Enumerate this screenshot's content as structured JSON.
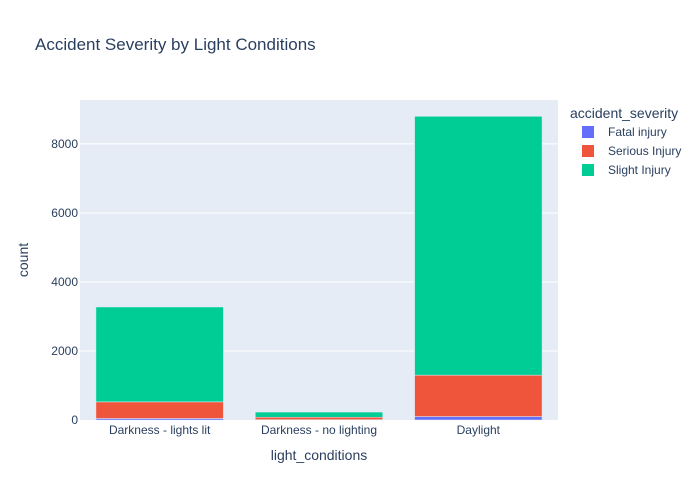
{
  "chart_data": {
    "type": "bar",
    "barmode": "stack",
    "title": "Accident Severity by Light Conditions",
    "xlabel": "light_conditions",
    "ylabel": "count",
    "categories": [
      "Darkness - lights lit",
      "Darkness - no lighting",
      "Daylight"
    ],
    "ylim": [
      0,
      9273
    ],
    "yticks": [
      0,
      2000,
      4000,
      6000,
      8000
    ],
    "ytick_labels": [
      "0",
      "2000",
      "4000",
      "6000",
      "8000"
    ],
    "legend_title": "accident_severity",
    "legend_position": "top-right",
    "grid": true,
    "plot_bg": "#e5ecf6",
    "series": [
      {
        "name": "Fatal injury",
        "color": "#636efa",
        "values": [
          45,
          10,
          100
        ]
      },
      {
        "name": "Serious Injury",
        "color": "#ef553b",
        "values": [
          480,
          70,
          1200
        ]
      },
      {
        "name": "Slight Injury",
        "color": "#00cc96",
        "values": [
          2750,
          150,
          7500
        ]
      }
    ]
  }
}
